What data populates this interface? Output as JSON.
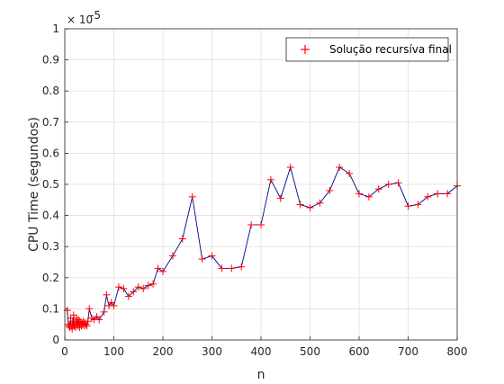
{
  "chart_data": {
    "type": "line",
    "title": "",
    "xlabel": "n",
    "ylabel": "CPU Time (segundos)",
    "exponent_label": "× 10",
    "exponent_power": "-5",
    "xlim": [
      0,
      800
    ],
    "ylim": [
      0,
      1
    ],
    "x_ticks": [
      "0",
      "100",
      "200",
      "300",
      "400",
      "500",
      "600",
      "700",
      "800"
    ],
    "y_ticks": [
      "0",
      "0.1",
      "0.2",
      "0.3",
      "0.4",
      "0.5",
      "0.6",
      "0.7",
      "0.8",
      "0.9",
      "1"
    ],
    "grid": true,
    "legend_position": "top-right",
    "line_color": "#00008b",
    "marker_color": "#ff0000",
    "series": [
      {
        "name": "Solução recursíva final",
        "x": [
          5,
          7,
          9,
          10,
          12,
          13,
          15,
          16,
          17,
          18,
          19,
          20,
          22,
          23,
          24,
          25,
          26,
          27,
          28,
          30,
          31,
          33,
          34,
          35,
          37,
          38,
          40,
          41,
          43,
          45,
          47,
          50,
          55,
          60,
          65,
          70,
          80,
          85,
          90,
          95,
          100,
          110,
          120,
          130,
          140,
          150,
          160,
          170,
          180,
          190,
          200,
          220,
          240,
          260,
          280,
          300,
          320,
          340,
          360,
          380,
          400,
          420,
          440,
          460,
          480,
          500,
          520,
          540,
          560,
          580,
          600,
          620,
          640,
          660,
          680,
          700,
          720,
          740,
          760,
          780,
          800
        ],
        "y": [
          0.095,
          0.05,
          0.045,
          0.04,
          0.07,
          0.045,
          0.035,
          0.06,
          0.05,
          0.08,
          0.045,
          0.05,
          0.04,
          0.06,
          0.07,
          0.05,
          0.055,
          0.045,
          0.065,
          0.04,
          0.06,
          0.05,
          0.045,
          0.055,
          0.05,
          0.06,
          0.045,
          0.055,
          0.05,
          0.045,
          0.06,
          0.1,
          0.07,
          0.065,
          0.075,
          0.065,
          0.09,
          0.145,
          0.11,
          0.12,
          0.11,
          0.17,
          0.165,
          0.14,
          0.155,
          0.17,
          0.165,
          0.175,
          0.18,
          0.23,
          0.22,
          0.27,
          0.325,
          0.46,
          0.26,
          0.27,
          0.23,
          0.23,
          0.235,
          0.37,
          0.37,
          0.515,
          0.455,
          0.555,
          0.435,
          0.425,
          0.44,
          0.48,
          0.555,
          0.535,
          0.47,
          0.46,
          0.485,
          0.5,
          0.505,
          0.43,
          0.435,
          0.46,
          0.47,
          0.47,
          0.495
        ]
      }
    ]
  }
}
